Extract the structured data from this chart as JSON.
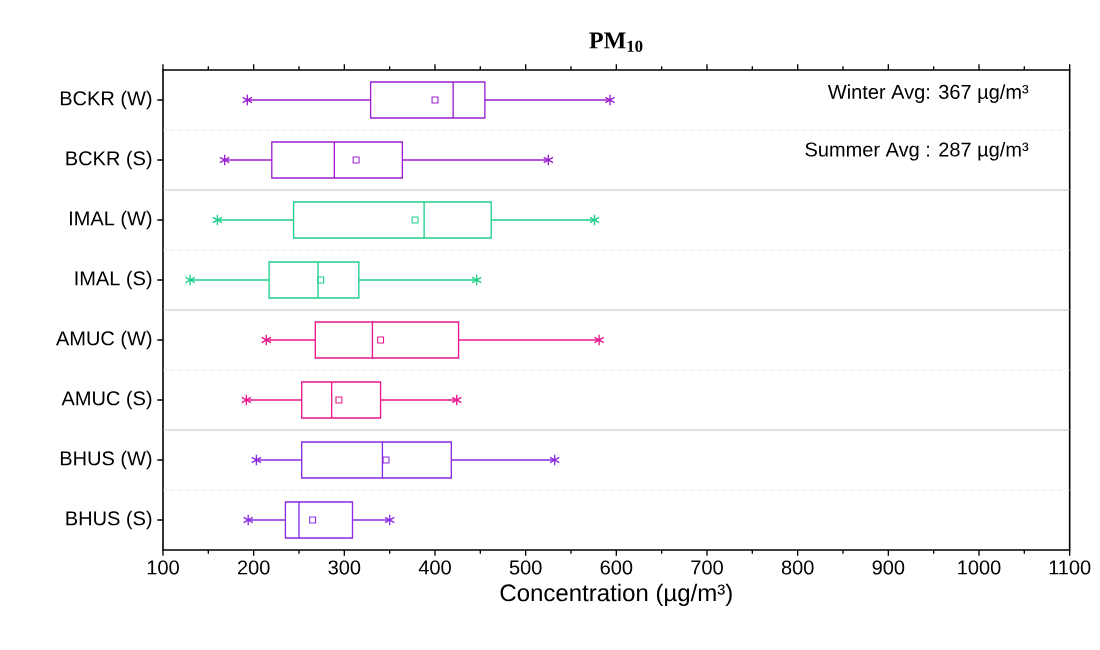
{
  "chart_data": {
    "type": "box",
    "title": "**PM$_{10}$**",
    "xlabel": "Concentration (µg/m³)",
    "orientation": "horizontal",
    "categories": [
      "BCKR (W)",
      "BCKR (S)",
      "IMAL (W)",
      "IMAL (S)",
      "AMUC (W)",
      "AMUC (S)",
      "BHUS (W)",
      "BHUS (S)"
    ],
    "colors": [
      "#9b1fd0",
      "#9b1fd0",
      "#1fd08a",
      "#1fd08a",
      "#e8168a",
      "#e8168a",
      "#8a2be2",
      "#8a2be2"
    ],
    "boxes": [
      {
        "low": 193,
        "q1": 329,
        "median": 420,
        "q3": 455,
        "high": 593,
        "mean": 400
      },
      {
        "low": 168,
        "q1": 220,
        "median": 289,
        "q3": 364,
        "high": 525,
        "mean": 313
      },
      {
        "low": 160,
        "q1": 244,
        "median": 388,
        "q3": 462,
        "high": 576,
        "mean": 378
      },
      {
        "low": 130,
        "q1": 217,
        "median": 271,
        "q3": 316,
        "high": 446,
        "mean": 274
      },
      {
        "low": 214,
        "q1": 268,
        "median": 331,
        "q3": 426,
        "high": 581,
        "mean": 340
      },
      {
        "low": 192,
        "q1": 253,
        "median": 286,
        "q3": 340,
        "high": 424,
        "mean": 294
      },
      {
        "low": 203,
        "q1": 253,
        "median": 342,
        "q3": 418,
        "high": 532,
        "mean": 346
      },
      {
        "low": 194,
        "q1": 235,
        "median": 250,
        "q3": 309,
        "high": 350,
        "mean": 265
      }
    ],
    "xlim": [
      100,
      1100
    ],
    "xticks": [
      100,
      200,
      300,
      400,
      500,
      600,
      700,
      800,
      900,
      1000,
      1100
    ],
    "grid": "y",
    "marker": "star",
    "annotations": [
      "Winter Avg: 367 µg/m³",
      "Summer Avg : 287 µg/m³"
    ]
  }
}
